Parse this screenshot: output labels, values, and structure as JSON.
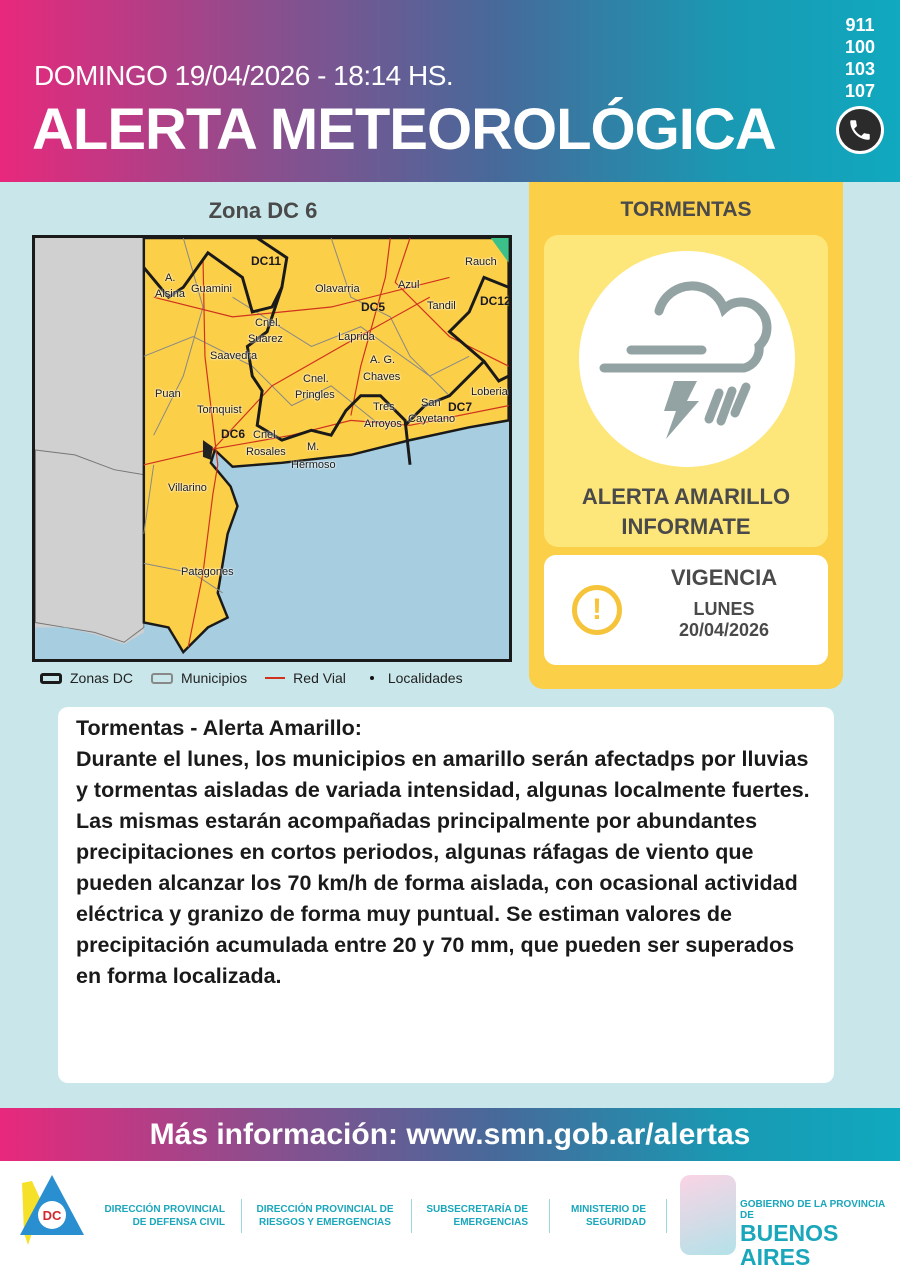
{
  "header": {
    "date": "DOMINGO 19/04/2026 - 18:14 HS.",
    "title": "ALERTA METEOROLÓGICA",
    "phones": [
      "911",
      "100",
      "103",
      "107"
    ],
    "phone_icon": "phone-icon"
  },
  "map": {
    "zone_title": "Zona DC 6",
    "labels": [
      "A.",
      "Alsina",
      "Guamini",
      "DC11",
      "Olavarria",
      "Azul",
      "Rauch",
      "DC5",
      "DC12",
      "Cnel.",
      "Suarez",
      "Laprida",
      "Tandil",
      "Saavedra",
      "A. G.",
      "Chaves",
      "Cnel.",
      "Pringles",
      "Loberia",
      "Puan",
      "San",
      "DC7",
      "Tres",
      "Tornquist",
      "Cayetano",
      "Arroyos",
      "DC6",
      "Cnel.",
      "Rosales",
      "M.",
      "Hermoso",
      "Villarino",
      "Patagones"
    ],
    "legend": [
      "Zonas DC",
      "Municipios",
      "Red Vial",
      "Localidades"
    ],
    "colors": {
      "alert": "#fccf48",
      "sea": "#a6cde0",
      "outside": "#d0d0d0",
      "road": "#d0321e"
    }
  },
  "alert": {
    "hazard": "TORMENTAS",
    "icon": "thunderstorm-icon",
    "level_line1": "ALERTA AMARILLO",
    "level_line2": "INFORMATE",
    "level_color": "#fccf48",
    "vigencia": {
      "title": "VIGENCIA",
      "day": "LUNES",
      "date": "20/04/2026"
    }
  },
  "description": {
    "heading": "Tormentas - Alerta Amarillo:",
    "text": "Durante el lunes, los municipios en amarillo serán afectadps por lluvias y tormentas aisladas de variada intensidad, algunas localmente fuertes. Las mismas estarán acompañadas principalmente por abundantes precipitaciones en cortos periodos, algunas ráfagas de viento que pueden alcanzar los 70 km/h de forma aislada, con ocasional actividad eléctrica y granizo de forma muy puntual. Se estiman valores de precipitación acumulada entre 20 y 70 mm, que pueden ser superados en forma localizada."
  },
  "banner": {
    "text": "Más información: www.smn.gob.ar/alertas"
  },
  "footer": {
    "logo_text": "DC",
    "orgs": [
      [
        "DIRECCIÓN PROVINCIAL",
        "DE DEFENSA CIVIL"
      ],
      [
        "DIRECCIÓN PROVINCIAL DE",
        "RIESGOS Y EMERGENCIAS"
      ],
      [
        "SUBSECRETARÍA DE",
        "EMERGENCIAS"
      ],
      [
        "MINISTERIO DE",
        "SEGURIDAD"
      ]
    ],
    "gov_small": "GOBIERNO DE LA PROVINCIA DE",
    "gov_large": "BUENOS AIRES"
  }
}
